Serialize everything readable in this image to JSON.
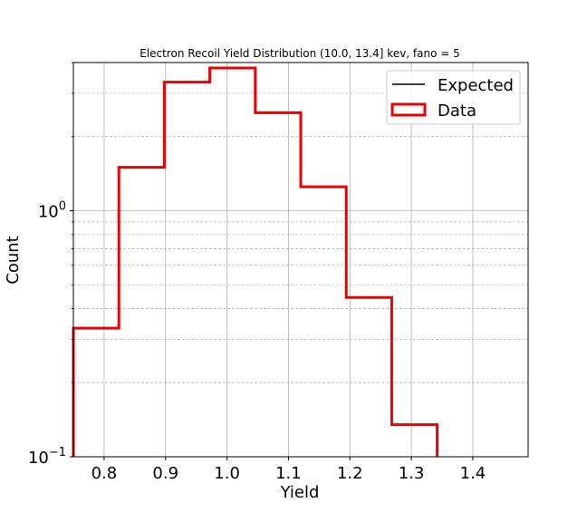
{
  "chart_data": {
    "type": "histogram",
    "title": "Electron Recoil Yield Distribution (10.0, 13.4] kev, fano = 5",
    "xlabel": "Yield",
    "ylabel": "Count",
    "yscale": "log",
    "xlim": [
      0.75,
      1.49
    ],
    "ylim": [
      0.1,
      4.0
    ],
    "grid": {
      "major": true,
      "minor_y": true
    },
    "legend": {
      "placement": "top-right",
      "entries": [
        {
          "label": "Expected",
          "kind": "line",
          "color": "#000000"
        },
        {
          "label": "Data",
          "kind": "step",
          "color": "#ee0000"
        }
      ]
    },
    "x_ticks": [
      {
        "value": 0.8,
        "label": "0.8"
      },
      {
        "value": 0.9,
        "label": "0.9"
      },
      {
        "value": 1.0,
        "label": "1.0"
      },
      {
        "value": 1.1,
        "label": "1.1"
      },
      {
        "value": 1.2,
        "label": "1.2"
      },
      {
        "value": 1.3,
        "label": "1.3"
      },
      {
        "value": 1.4,
        "label": "1.4"
      }
    ],
    "y_ticks": [
      {
        "value": 0.1,
        "base": "10",
        "exp": "−1"
      },
      {
        "value": 1.0,
        "base": "10",
        "exp": "0"
      }
    ],
    "series": [
      {
        "name": "Expected",
        "color": "#000000",
        "bin_edges": [],
        "counts": []
      },
      {
        "name": "Data",
        "color": "#ee0000",
        "bin_edges": [
          0.75,
          0.824,
          0.898,
          0.972,
          1.046,
          1.12,
          1.194,
          1.268,
          1.342
        ],
        "counts": [
          0.333,
          1.5,
          3.33,
          3.8,
          2.5,
          1.25,
          0.444,
          0.135
        ]
      }
    ]
  }
}
